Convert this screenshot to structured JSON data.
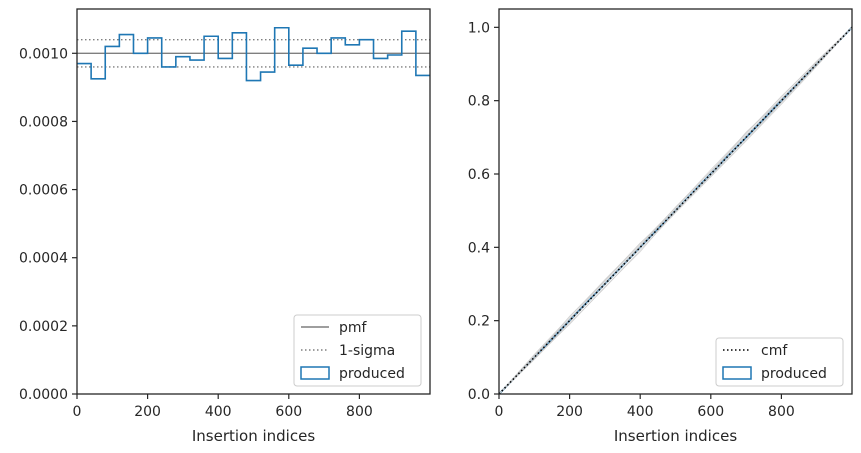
{
  "chart_data": [
    {
      "type": "line",
      "panel": "left",
      "xlabel": "Insertion indices",
      "ylabel": "",
      "xlim": [
        0,
        1000
      ],
      "ylim": [
        0,
        0.00113
      ],
      "x_ticks": [
        0,
        200,
        400,
        600,
        800
      ],
      "x_tick_labels": [
        "0",
        "200",
        "400",
        "600",
        "800"
      ],
      "y_ticks": [
        0,
        0.0002,
        0.0004,
        0.0006,
        0.0008,
        0.001
      ],
      "y_tick_labels": [
        "0.0000",
        "0.0002",
        "0.0004",
        "0.0006",
        "0.0008",
        "0.0010"
      ],
      "grid": false,
      "legend_position": "lower right",
      "series": [
        {
          "name": "pmf",
          "kind": "hline",
          "y": 0.001,
          "color": "#7f7f7f",
          "style": "solid"
        },
        {
          "name": "1-sigma",
          "kind": "hlines",
          "y": [
            0.00096,
            0.00104
          ],
          "color": "#7f7f7f",
          "style": "dotted"
        },
        {
          "name": "produced",
          "kind": "step-histogram",
          "color": "#1f77b4",
          "bin_edges": [
            0,
            40,
            80,
            120,
            160,
            200,
            240,
            280,
            320,
            360,
            400,
            440,
            480,
            520,
            560,
            600,
            640,
            680,
            720,
            760,
            800,
            840,
            880,
            920,
            960,
            1000
          ],
          "values": [
            0.00097,
            0.000925,
            0.00102,
            0.001055,
            0.001,
            0.001045,
            0.00096,
            0.00099,
            0.00098,
            0.00105,
            0.000985,
            0.00106,
            0.00092,
            0.000945,
            0.001075,
            0.000965,
            0.001015,
            0.001,
            0.001045,
            0.001025,
            0.00104,
            0.000985,
            0.000995,
            0.001065,
            0.000935
          ]
        }
      ]
    },
    {
      "type": "line",
      "panel": "right",
      "xlabel": "Insertion indices",
      "ylabel": "",
      "xlim": [
        0,
        1000
      ],
      "ylim": [
        0,
        1.05
      ],
      "x_ticks": [
        0,
        200,
        400,
        600,
        800
      ],
      "x_tick_labels": [
        "0",
        "200",
        "400",
        "600",
        "800"
      ],
      "y_ticks": [
        0,
        0.2,
        0.4,
        0.6,
        0.8,
        1.0
      ],
      "y_tick_labels": [
        "0.0",
        "0.2",
        "0.4",
        "0.6",
        "0.8",
        "1.0"
      ],
      "grid": false,
      "legend_position": "lower right",
      "series": [
        {
          "name": "cmf",
          "kind": "line",
          "x": [
            0,
            1000
          ],
          "y": [
            0,
            1
          ],
          "color": "#000000",
          "style": "dotted"
        },
        {
          "name": "produced",
          "kind": "line",
          "x": [
            0,
            1000
          ],
          "y": [
            0,
            1
          ],
          "color": "#1f77b4",
          "style": "solid"
        },
        {
          "kind": "band-samples",
          "color": "#c8c8c8",
          "x": [
            0,
            100,
            200,
            300,
            400,
            500,
            600,
            700,
            800,
            900,
            1000
          ],
          "samples": [
            [
              0,
              0.108,
              0.21,
              0.312,
              0.41,
              0.508,
              0.612,
              0.712,
              0.81,
              0.908,
              1.0
            ],
            [
              0,
              0.094,
              0.192,
              0.29,
              0.392,
              0.494,
              0.592,
              0.69,
              0.79,
              0.894,
              1.0
            ],
            [
              0,
              0.104,
              0.206,
              0.304,
              0.404,
              0.51,
              0.606,
              0.706,
              0.806,
              0.902,
              1.0
            ],
            [
              0,
              0.096,
              0.196,
              0.3,
              0.398,
              0.496,
              0.6,
              0.696,
              0.796,
              0.898,
              1.0
            ],
            [
              0,
              0.102,
              0.2,
              0.298,
              0.402,
              0.502,
              0.598,
              0.702,
              0.8,
              0.9,
              1.0
            ],
            [
              0,
              0.1,
              0.212,
              0.308,
              0.412,
              0.498,
              0.6,
              0.714,
              0.804,
              0.904,
              1.0
            ],
            [
              0,
              0.098,
              0.19,
              0.292,
              0.388,
              0.5,
              0.594,
              0.692,
              0.794,
              0.896,
              1.0
            ],
            [
              0,
              0.106,
              0.204,
              0.31,
              0.406,
              0.506,
              0.608,
              0.71,
              0.812,
              0.906,
              1.0
            ]
          ]
        }
      ]
    }
  ],
  "legends": {
    "left": [
      {
        "label": "pmf",
        "symbol": "solid-line",
        "color": "#7f7f7f"
      },
      {
        "label": "1-sigma",
        "symbol": "dotted-line",
        "color": "#7f7f7f"
      },
      {
        "label": "produced",
        "symbol": "box",
        "color": "#1f77b4"
      }
    ],
    "right": [
      {
        "label": "cmf",
        "symbol": "dotted-line",
        "color": "#000000"
      },
      {
        "label": "produced",
        "symbol": "box",
        "color": "#1f77b4"
      }
    ]
  }
}
